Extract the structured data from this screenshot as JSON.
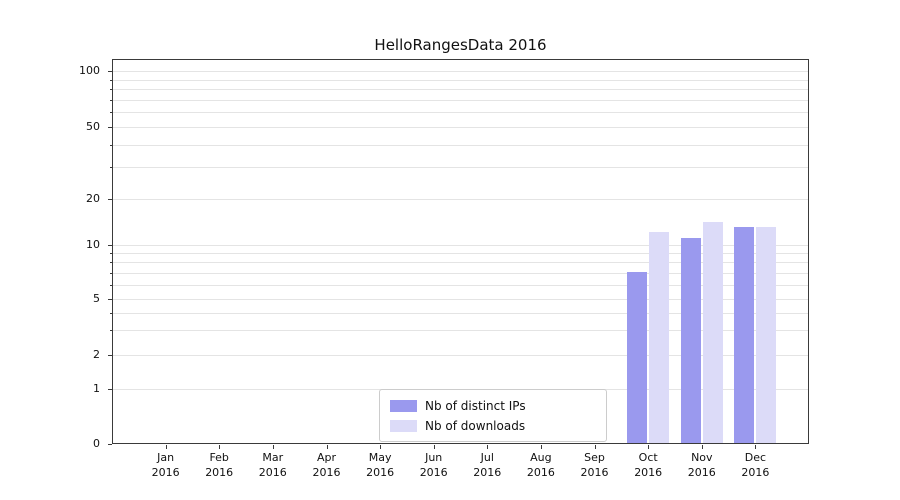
{
  "chart_data": {
    "type": "bar",
    "title": "HelloRangesData 2016",
    "x_months": [
      "Jan",
      "Feb",
      "Mar",
      "Apr",
      "May",
      "Jun",
      "Jul",
      "Aug",
      "Sep",
      "Oct",
      "Nov",
      "Dec"
    ],
    "x_year": "2016",
    "series": [
      {
        "name": "Nb of distinct IPs",
        "color": "#9a99ee",
        "values": [
          null,
          null,
          null,
          null,
          null,
          null,
          null,
          null,
          null,
          7,
          11,
          13
        ]
      },
      {
        "name": "Nb of downloads",
        "color": "#dcdbf8",
        "values": [
          null,
          null,
          null,
          null,
          null,
          null,
          null,
          null,
          null,
          12,
          14,
          13
        ]
      }
    ],
    "y_ticks": [
      0,
      1,
      2,
      5,
      10,
      20,
      50,
      100
    ],
    "y_scale": "symlog",
    "ylim": [
      0,
      113
    ],
    "grid_values": [
      1,
      2,
      3,
      4,
      5,
      6,
      7,
      8,
      9,
      10,
      20,
      30,
      40,
      50,
      60,
      70,
      80,
      90,
      100
    ],
    "grid": "horizontal",
    "legend_position": "lower center inside plot"
  },
  "legend": {
    "entry_ips": "Nb of distinct IPs",
    "entry_downloads": "Nb of downloads"
  },
  "colors": {
    "bar_ips": "#9a99ee",
    "bar_downloads": "#dcdbf8",
    "gridline": "#e4e4e4",
    "spine": "#3a3a3a"
  }
}
